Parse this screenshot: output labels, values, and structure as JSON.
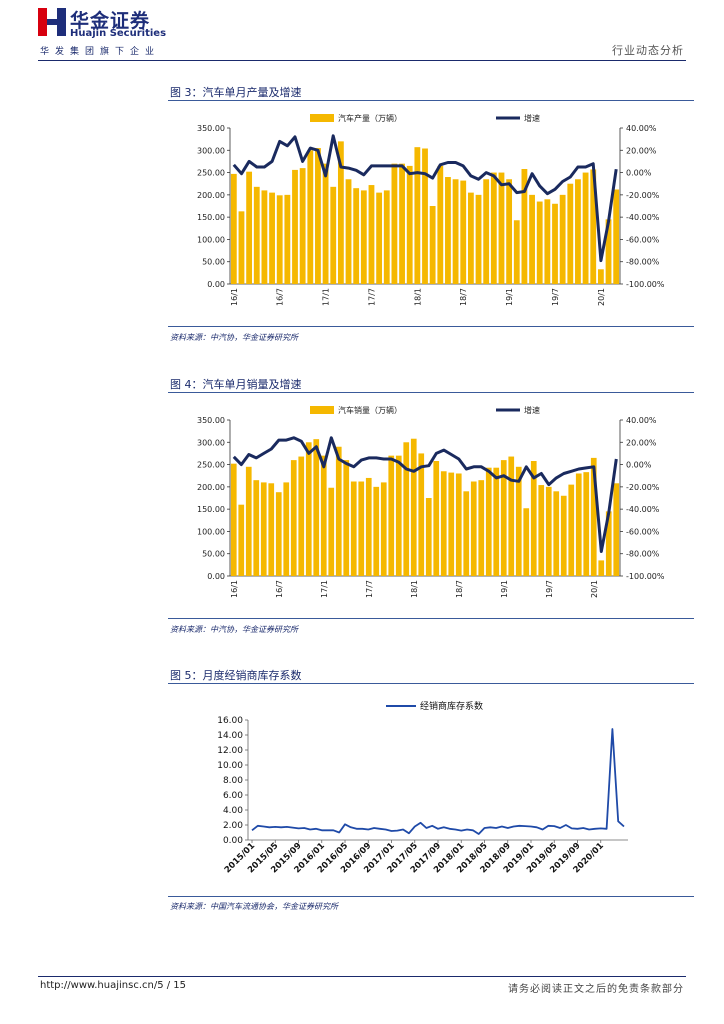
{
  "header": {
    "brand_cn": "华金证券",
    "brand_en": "Huajin Securities",
    "sub_brand": "华发集团旗下企业",
    "report_type": "行业动态分析"
  },
  "footer": {
    "url_page": "http://www.huajinsc.cn/5 / 15",
    "disclaimer": "请务必阅读正文之后的免责条款部分"
  },
  "colors": {
    "bar": "#f5b800",
    "line": "#1a2a5e",
    "line3": "#1f4aa8",
    "brand_red": "#d7000f",
    "brand_blue": "#1e2e7a"
  },
  "figures": [
    {
      "title": "图 3：汽车单月产量及增速",
      "source": "资料来源：中汽协，华金证券研究所"
    },
    {
      "title": "图 4：汽车单月销量及增速",
      "source": "资料来源：中汽协，华金证券研究所"
    },
    {
      "title": "图 5：月度经销商库存系数",
      "source": "资料来源：中国汽车流通协会，华金证券研究所"
    }
  ],
  "chart_data": [
    {
      "type": "bar",
      "title": "",
      "series": [
        {
          "name": "汽车产量（万辆）",
          "type": "bar",
          "values": [
            247,
            163,
            252,
            218,
            210,
            205,
            199,
            200,
            256,
            260,
            300,
            305,
            270,
            218,
            320,
            235,
            215,
            210,
            222,
            205,
            210,
            270,
            270,
            265,
            307,
            304,
            175,
            265,
            240,
            235,
            232,
            205,
            200,
            235,
            250,
            250,
            235,
            143,
            258,
            200,
            185,
            190,
            180,
            200,
            225,
            235,
            250,
            257,
            33,
            145,
            212
          ]
        },
        {
          "name": "增速",
          "type": "line",
          "axis": "right",
          "values": [
            7,
            -1,
            10,
            5,
            5,
            10,
            28,
            24,
            32,
            10,
            22,
            20,
            -3,
            33,
            5,
            4,
            2,
            -2,
            6,
            6,
            6,
            6,
            6,
            -1,
            0,
            -1,
            -5,
            7,
            9,
            9,
            6,
            -3,
            -6,
            0,
            -3,
            -11,
            -10,
            -18,
            -17,
            -1,
            -12,
            -19,
            -15,
            -8,
            -4,
            5,
            5,
            8,
            -79,
            -44,
            3
          ]
        }
      ],
      "x_tick_labels": [
        "16/1",
        "16/7",
        "17/1",
        "17/7",
        "18/1",
        "18/7",
        "19/1",
        "19/7",
        "20/1"
      ],
      "y_tick_labels": [
        "350.00",
        "300.00",
        "250.00",
        "200.00",
        "150.00",
        "100.00",
        "50.00",
        "0.00"
      ],
      "y2_tick_labels": [
        "40.00%",
        "20.00%",
        "0.00%",
        "-20.00%",
        "-40.00%",
        "-60.00%",
        "-80.00%",
        "-100.00%"
      ],
      "ylim": [
        0,
        350
      ],
      "y2lim": [
        -100,
        40
      ],
      "legend": "top"
    },
    {
      "type": "bar",
      "title": "",
      "series": [
        {
          "name": "汽车销量（万辆）",
          "type": "bar",
          "values": [
            252,
            160,
            245,
            215,
            210,
            208,
            188,
            210,
            260,
            268,
            300,
            307,
            270,
            198,
            290,
            260,
            212,
            212,
            220,
            200,
            210,
            270,
            270,
            300,
            308,
            275,
            175,
            258,
            235,
            232,
            230,
            190,
            212,
            215,
            243,
            243,
            260,
            268,
            245,
            152,
            258,
            204,
            200,
            190,
            180,
            205,
            230,
            233,
            265,
            35,
            145,
            208
          ]
        },
        {
          "name": "增速",
          "type": "line",
          "axis": "right",
          "values": [
            7,
            0,
            9,
            6,
            10,
            14,
            22,
            22,
            24,
            21,
            10,
            16,
            -2,
            24,
            5,
            1,
            -2,
            4,
            6,
            6,
            5,
            5,
            2,
            -4,
            -6,
            -2,
            -1,
            10,
            13,
            9,
            5,
            -4,
            -2,
            -2,
            -6,
            -12,
            -10,
            -14,
            -15,
            -2,
            -12,
            -8,
            -18,
            -12,
            -8,
            -6,
            -4,
            -3,
            -2,
            -78,
            -43,
            5
          ]
        }
      ],
      "x_tick_labels": [
        "16/1",
        "16/7",
        "17/1",
        "17/7",
        "18/1",
        "18/7",
        "19/1",
        "19/7",
        "20/1"
      ],
      "y_tick_labels": [
        "350.00",
        "300.00",
        "250.00",
        "200.00",
        "150.00",
        "100.00",
        "50.00",
        "0.00"
      ],
      "y2_tick_labels": [
        "40.00%",
        "20.00%",
        "0.00%",
        "-20.00%",
        "-40.00%",
        "-60.00%",
        "-80.00%",
        "-100.00%"
      ],
      "ylim": [
        0,
        350
      ],
      "y2lim": [
        -100,
        40
      ],
      "legend": "top"
    },
    {
      "type": "line",
      "title": "",
      "series": [
        {
          "name": "经销商库存系数",
          "values": [
            1.3,
            1.9,
            1.8,
            1.7,
            1.75,
            1.7,
            1.75,
            1.65,
            1.55,
            1.6,
            1.4,
            1.5,
            1.3,
            1.3,
            1.3,
            1.0,
            2.1,
            1.7,
            1.5,
            1.5,
            1.4,
            1.6,
            1.5,
            1.4,
            1.2,
            1.25,
            1.4,
            0.9,
            1.8,
            2.3,
            1.6,
            1.9,
            1.5,
            1.7,
            1.5,
            1.4,
            1.25,
            1.4,
            1.3,
            0.8,
            1.6,
            1.7,
            1.6,
            1.8,
            1.6,
            1.8,
            1.9,
            1.85,
            1.8,
            1.7,
            1.4,
            1.9,
            1.85,
            1.6,
            2.0,
            1.55,
            1.5,
            1.6,
            1.4,
            1.5,
            1.55,
            1.5,
            14.8,
            2.5,
            1.8
          ]
        }
      ],
      "x_tick_labels": [
        "2015/01",
        "2015/05",
        "2015/09",
        "2016/01",
        "2016/05",
        "2016/09",
        "2017/01",
        "2017/05",
        "2017/09",
        "2018/01",
        "2018/05",
        "2018/09",
        "2019/01",
        "2019/05",
        "2019/09",
        "2020/01"
      ],
      "y_tick_labels": [
        "16.00",
        "14.00",
        "12.00",
        "10.00",
        "8.00",
        "6.00",
        "4.00",
        "2.00",
        "0.00"
      ],
      "ylim": [
        0,
        16
      ],
      "legend": "top"
    }
  ]
}
